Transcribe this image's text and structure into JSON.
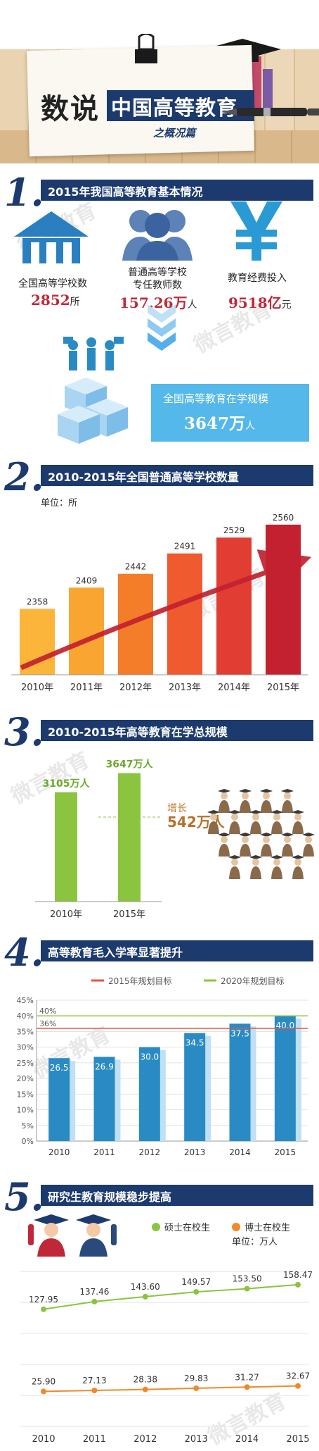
{
  "header": {
    "title_prefix": "数说",
    "title_main": "中国高等教育",
    "subtitle": "之概况篇"
  },
  "watermark": "微言教育",
  "sections": [
    {
      "num": "1.",
      "title": "2015年我国高等教育基本情况"
    },
    {
      "num": "2.",
      "title": "2010-2015年全国普通高等学校数量"
    },
    {
      "num": "3.",
      "title": "2010-2015年高等教育在学总规模"
    },
    {
      "num": "4.",
      "title": "高等教育毛入学率显著提升"
    },
    {
      "num": "5.",
      "title": "研究生教育规模稳步提高"
    }
  ],
  "basic": {
    "schools_label": "全国高等学校数",
    "schools_value": "2852",
    "schools_unit": "所",
    "teachers_label_1": "普通高等学校",
    "teachers_label_2": "专任教师数",
    "teachers_value": "157.26万",
    "teachers_unit": "人",
    "funding_label": "教育经费投入",
    "funding_value": "9518亿",
    "funding_unit": "元",
    "scale_label": "全国高等教育在学规模",
    "scale_value": "3647万",
    "scale_unit": "人"
  },
  "chart_data": [
    {
      "type": "bar",
      "unit_label": "单位：所",
      "categories": [
        "2010年",
        "2011年",
        "2012年",
        "2013年",
        "2014年",
        "2015年"
      ],
      "values": [
        2358,
        2409,
        2442,
        2491,
        2529,
        2560
      ],
      "colors": [
        "#fbb53a",
        "#f9a531",
        "#f47d2a",
        "#ef5a2f",
        "#e23d33",
        "#c3212f"
      ]
    },
    {
      "type": "bar",
      "categories": [
        "2010年",
        "2015年"
      ],
      "value_labels": [
        "3105万人",
        "3647万人"
      ],
      "values": [
        3105,
        3647
      ],
      "increase_label": "增长",
      "increase_value": "542万人",
      "color": "#8bc43f"
    },
    {
      "type": "bar",
      "legend": [
        "2015年规划目标",
        "2020年规划目标"
      ],
      "legend_colors": [
        "#e8553f",
        "#8bc43f"
      ],
      "reference_lines": [
        {
          "label": "36%",
          "value": 36
        },
        {
          "label": "40%",
          "value": 40
        }
      ],
      "categories": [
        "2010",
        "2011",
        "2012",
        "2013",
        "2014",
        "2015"
      ],
      "values": [
        26.5,
        26.9,
        30.0,
        34.5,
        37.5,
        40.0
      ],
      "value_labels": [
        "26.5",
        "26.9",
        "30.0",
        "34.5",
        "37.5",
        "40.0"
      ],
      "ylim": [
        0,
        45
      ],
      "yticks": [
        "0%",
        "5%",
        "10%",
        "15%",
        "20%",
        "25%",
        "30%",
        "35%",
        "40%",
        "45%"
      ],
      "color": "#2a8bc4"
    },
    {
      "type": "line",
      "unit_label": "单位：万人",
      "categories": [
        "2010",
        "2011",
        "2012",
        "2013",
        "2014",
        "2015"
      ],
      "series": [
        {
          "name": "硕士在校生",
          "values": [
            127.95,
            137.46,
            143.6,
            149.57,
            153.5,
            158.47
          ],
          "labels": [
            "127.95",
            "137.46",
            "143.60",
            "149.57",
            "153.50",
            "158.47"
          ],
          "color": "#8bc43f"
        },
        {
          "name": "博士在校生",
          "values": [
            25.9,
            27.13,
            28.38,
            29.83,
            31.27,
            32.67
          ],
          "labels": [
            "25.90",
            "27.13",
            "28.38",
            "29.83",
            "31.27",
            "32.67"
          ],
          "color": "#ef8a2a"
        }
      ]
    }
  ]
}
